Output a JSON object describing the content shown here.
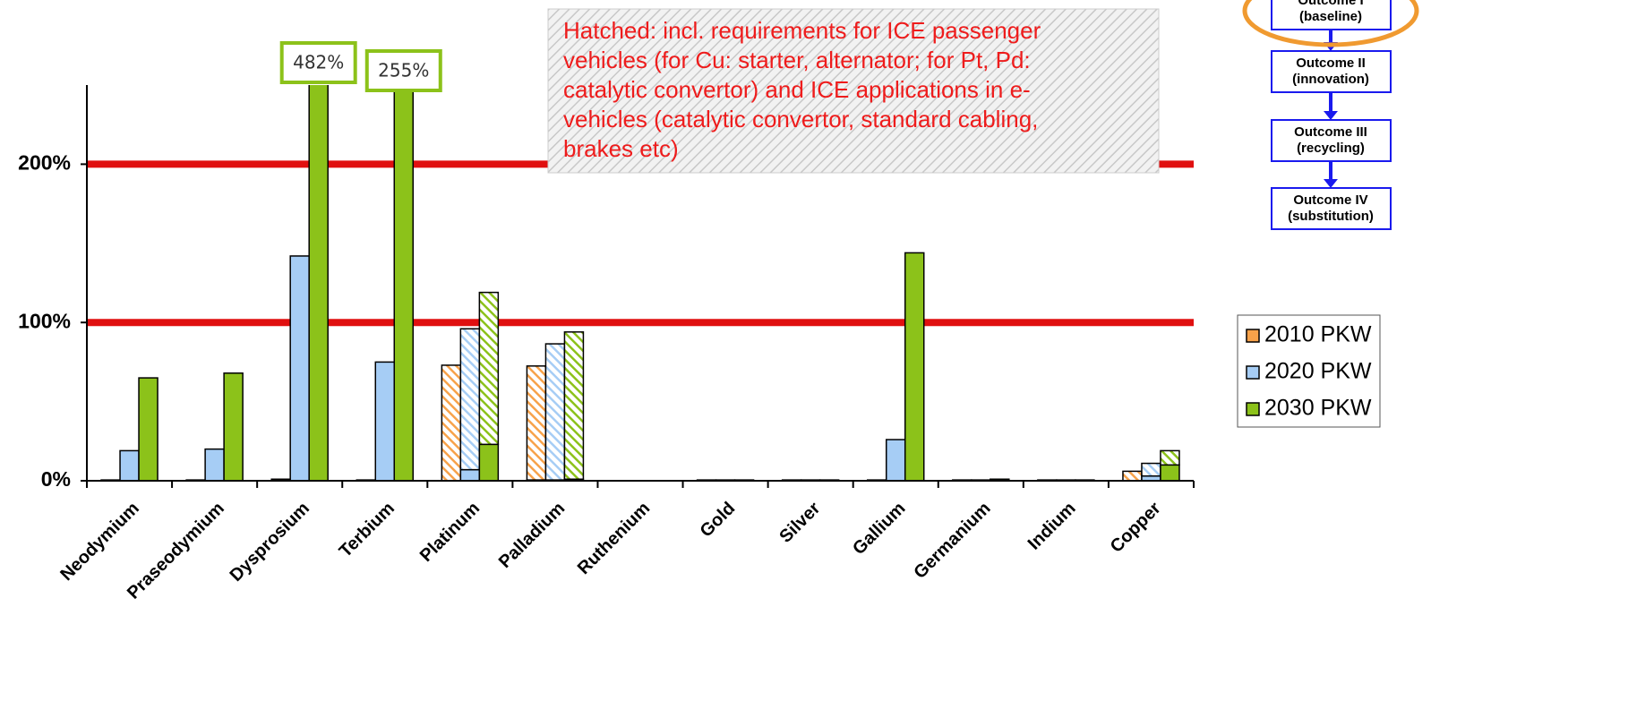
{
  "chart_data": {
    "type": "bar",
    "categories": [
      "Neodymium",
      "Praseodymium",
      "Dysprosium",
      "Terbium",
      "Platinum",
      "Palladium",
      "Ruthenium",
      "Gold",
      "Silver",
      "Gallium",
      "Germanium",
      "Indium",
      "Copper"
    ],
    "series": [
      {
        "name": "2010 PKW",
        "color": "#f7a24a",
        "values": [
          0.5,
          0.5,
          1,
          0.5,
          0,
          0.5,
          0,
          0.5,
          0.5,
          0.5,
          0.5,
          0.5,
          0
        ],
        "hatched_values": [
          0,
          0,
          0,
          0,
          73,
          72,
          0,
          0,
          0,
          0,
          0,
          0,
          6
        ]
      },
      {
        "name": "2020 PKW",
        "color": "#a6cdf5",
        "values": [
          19,
          20,
          142,
          75,
          7,
          0.5,
          0,
          0.5,
          0.5,
          26,
          0.5,
          0.5,
          3
        ],
        "hatched_values": [
          0,
          0,
          0,
          0,
          89,
          86,
          0,
          0,
          0,
          0,
          0,
          0,
          8
        ]
      },
      {
        "name": "2030 PKW",
        "color": "#8cc21a",
        "values": [
          65,
          68,
          482,
          255,
          23,
          1,
          0,
          0.5,
          0.5,
          144,
          1,
          0.5,
          10
        ],
        "hatched_values": [
          0,
          0,
          0,
          0,
          96,
          93,
          0,
          0,
          0,
          0,
          0,
          0,
          9
        ],
        "value_labels": [
          null,
          null,
          "482%",
          "255%",
          null,
          null,
          null,
          null,
          null,
          null,
          null,
          null,
          null
        ]
      }
    ],
    "ylim": [
      0,
      250
    ],
    "yticks": [
      {
        "value": 0,
        "label": "0%"
      },
      {
        "value": 100,
        "label": "100%"
      },
      {
        "value": 200,
        "label": "200%"
      }
    ],
    "reference_lines": [
      100,
      200
    ],
    "reference_color": "#e01010",
    "legend": "right",
    "annotation_lines": [
      "Hatched: incl. requirements for ICE passenger",
      "vehicles (for Cu: starter, alternator; for Pt, Pd:",
      "catalytic convertor) and ICE applications in e-",
      "vehicles (catalytic convertor, standard cabling,",
      "brakes etc)"
    ]
  },
  "outcomes": [
    {
      "title": "Outcome I",
      "subtitle": "(baseline)"
    },
    {
      "title": "Outcome II",
      "subtitle": "(innovation)"
    },
    {
      "title": "Outcome III",
      "subtitle": "(recycling)"
    },
    {
      "title": "Outcome IV",
      "subtitle": "(substitution)"
    }
  ]
}
